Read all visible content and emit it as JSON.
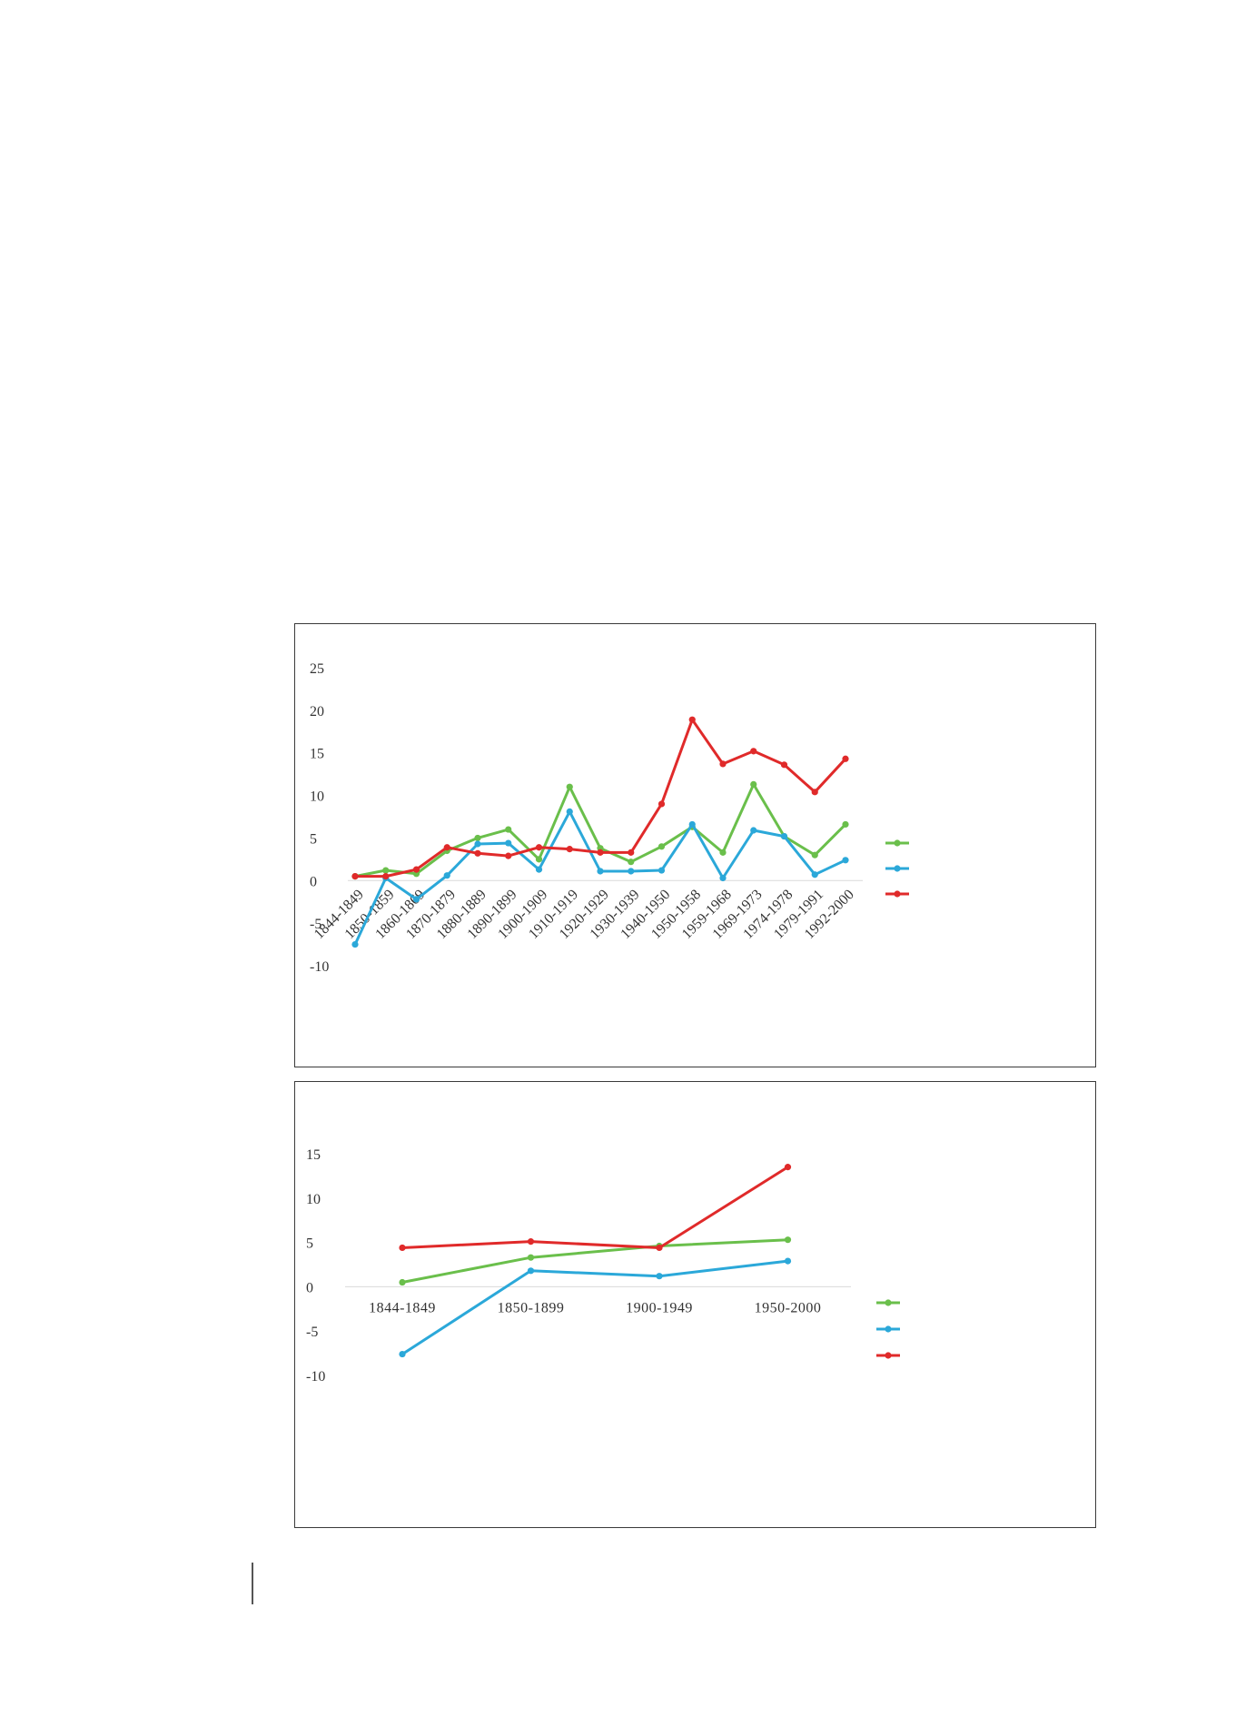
{
  "charts": [
    {
      "type": "line",
      "categories": [
        "1844-1849",
        "1850-1859",
        "1860-1869",
        "1870-1879",
        "1880-1889",
        "1890-1899",
        "1900-1909",
        "1910-1919",
        "1920-1929",
        "1930-1939",
        "1940-1950",
        "1950-1958",
        "1959-1968",
        "1969-1973",
        "1974-1978",
        "1979-1991",
        "1992-2000"
      ],
      "series": [
        {
          "color": "#6abf4b",
          "values": [
            0.5,
            1.2,
            0.8,
            3.5,
            5.0,
            6.0,
            2.5,
            11.0,
            3.8,
            2.2,
            4.0,
            6.3,
            3.3,
            11.3,
            5.2,
            3.0,
            6.6
          ]
        },
        {
          "color": "#2ba8d9",
          "values": [
            -7.5,
            0.3,
            -2.2,
            0.6,
            4.3,
            4.4,
            1.3,
            8.1,
            1.1,
            1.1,
            1.2,
            6.6,
            0.3,
            5.9,
            5.2,
            0.7,
            2.4
          ]
        },
        {
          "color": "#e02a2a",
          "values": [
            0.5,
            0.5,
            1.3,
            3.9,
            3.2,
            2.9,
            3.9,
            3.7,
            3.3,
            3.3,
            9.0,
            18.9,
            13.7,
            15.2,
            13.6,
            10.4,
            14.3
          ]
        }
      ],
      "yticks": [
        "25",
        "20",
        "15",
        "10",
        "5",
        "0",
        "-5",
        "-10"
      ],
      "ylim": [
        -10,
        25
      ],
      "grid": false,
      "legend": "right"
    },
    {
      "type": "line",
      "categories": [
        "1844-1849",
        "1850-1899",
        "1900-1949",
        "1950-2000"
      ],
      "series": [
        {
          "color": "#6abf4b",
          "values": [
            0.5,
            3.3,
            4.6,
            5.3
          ]
        },
        {
          "color": "#2ba8d9",
          "values": [
            -7.6,
            1.8,
            1.2,
            2.9
          ]
        },
        {
          "color": "#e02a2a",
          "values": [
            4.4,
            5.1,
            4.4,
            13.5
          ]
        }
      ],
      "yticks": [
        "15",
        "10",
        "5",
        "0",
        "-5",
        "-10"
      ],
      "ylim": [
        -10,
        15
      ],
      "grid": false,
      "legend": "right"
    }
  ]
}
